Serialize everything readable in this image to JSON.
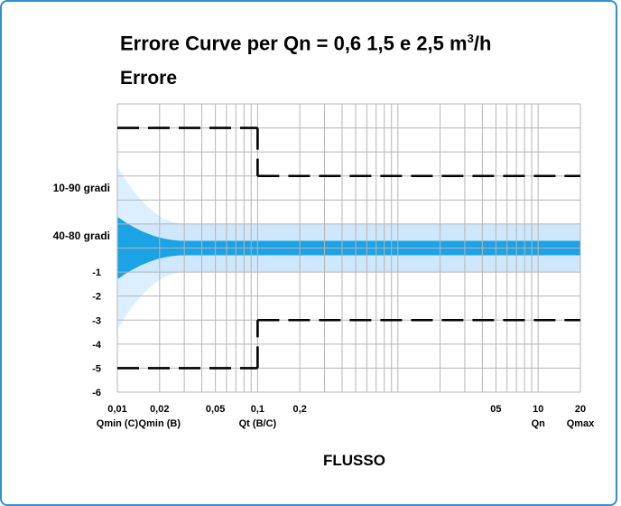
{
  "chart_data": {
    "type": "line",
    "title": "Errore Curve per Qn = 0,6 1,5 e 2,5 m",
    "title_superscript": "3",
    "title_unit_suffix": "/h",
    "subtitle": "Errore",
    "xlabel": "FLUSSO",
    "x_scale": "log",
    "xlim": [
      0.01,
      20
    ],
    "ylim": [
      -6,
      6
    ],
    "grid": true,
    "x_ticks": [
      {
        "x": 0.01,
        "label": "0,01",
        "sublabel": "Qmin (C)"
      },
      {
        "x": 0.02,
        "label": "0,02",
        "sublabel": "Qmin (B)"
      },
      {
        "x": 0.05,
        "label": "0,05",
        "sublabel": ""
      },
      {
        "x": 0.1,
        "label": "0,1",
        "sublabel": "Qt (B/C)"
      },
      {
        "x": 0.2,
        "label": "0,2",
        "sublabel": ""
      },
      {
        "x": 5,
        "label": "05",
        "sublabel": ""
      },
      {
        "x": 10,
        "label": "10",
        "sublabel": "Qn"
      },
      {
        "x": 20,
        "label": "20",
        "sublabel": "Qmax"
      }
    ],
    "y_ticks": [
      {
        "y": -1,
        "label": "-1"
      },
      {
        "y": -2,
        "label": "-2"
      },
      {
        "y": -3,
        "label": "-3"
      },
      {
        "y": -4,
        "label": "-4"
      },
      {
        "y": -5,
        "label": "-5"
      },
      {
        "y": -6,
        "label": "-6"
      }
    ],
    "band_labels": [
      {
        "y": 2.5,
        "label": "10-90 gradi"
      },
      {
        "y": 0.5,
        "label": "40-80 gradi"
      }
    ],
    "error_limits": {
      "upper": [
        {
          "x": 0.01,
          "y": 5
        },
        {
          "x": 0.1,
          "y": 5
        },
        {
          "x": 0.1,
          "y": 3
        },
        {
          "x": 20,
          "y": 3
        }
      ],
      "lower": [
        {
          "x": 0.01,
          "y": -5
        },
        {
          "x": 0.1,
          "y": -5
        },
        {
          "x": 0.1,
          "y": -3
        },
        {
          "x": 20,
          "y": -3
        }
      ]
    },
    "bands": [
      {
        "color": "#dcefff",
        "steady": [
          -1,
          1
        ],
        "start": [
          -3.4,
          3.4
        ]
      },
      {
        "color": "#cfe7fb",
        "steady": [
          -1,
          1
        ],
        "start": [
          -1,
          1
        ]
      },
      {
        "color": "#1ba3e6",
        "steady": [
          -0.3,
          0.3
        ],
        "start": [
          -1.3,
          1.3
        ]
      }
    ],
    "colors": {
      "frame": "#2e8fd3",
      "grid": "#b5b5b5",
      "limit_line": "#000000"
    }
  }
}
